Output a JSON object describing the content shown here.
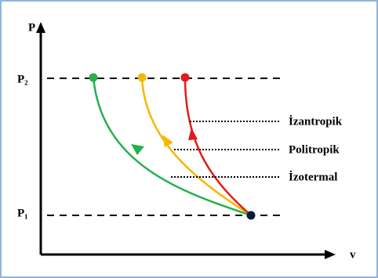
{
  "axes": {
    "y_label": "P",
    "x_label": "v"
  },
  "levels": {
    "high": "P₂",
    "low": "P₁"
  },
  "processes": [
    {
      "label": "İzantropik"
    },
    {
      "label": "Politropik"
    },
    {
      "label": "İzotermal"
    }
  ]
}
